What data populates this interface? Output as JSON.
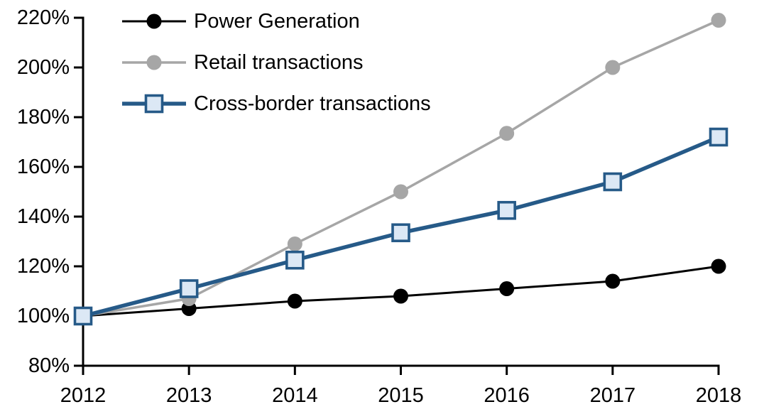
{
  "chart_data": {
    "type": "line",
    "title": "",
    "xlabel": "",
    "ylabel": "",
    "x": [
      "2012",
      "2013",
      "2014",
      "2015",
      "2016",
      "2017",
      "2018"
    ],
    "y_axis": {
      "min": 80,
      "max": 220,
      "step": 20,
      "tick_suffix": "%",
      "tick_labels": [
        "80%",
        "100%",
        "120%",
        "140%",
        "160%",
        "180%",
        "200%",
        "220%"
      ]
    },
    "grid": false,
    "axis_color": "#000000",
    "legend": {
      "position": "top-left",
      "items": [
        "Power Generation",
        "Retail transactions",
        "Cross-border transactions"
      ]
    },
    "series": [
      {
        "name": "Power Generation",
        "values": [
          100,
          103,
          106,
          108,
          111,
          114,
          120
        ],
        "color": "#000000",
        "line_width": 3,
        "marker": "circle",
        "marker_fill": "#000000"
      },
      {
        "name": "Retail transactions",
        "values": [
          100,
          107,
          129,
          150,
          173.5,
          200,
          219
        ],
        "color": "#A6A6A6",
        "line_width": 3.5,
        "marker": "circle",
        "marker_fill": "#A6A6A6"
      },
      {
        "name": "Cross-border transactions",
        "values": [
          100,
          111,
          122.5,
          133.5,
          142.5,
          154,
          172
        ],
        "color": "#265A88",
        "line_width": 5.5,
        "marker": "square",
        "marker_fill": "#DCE8F5"
      }
    ]
  }
}
